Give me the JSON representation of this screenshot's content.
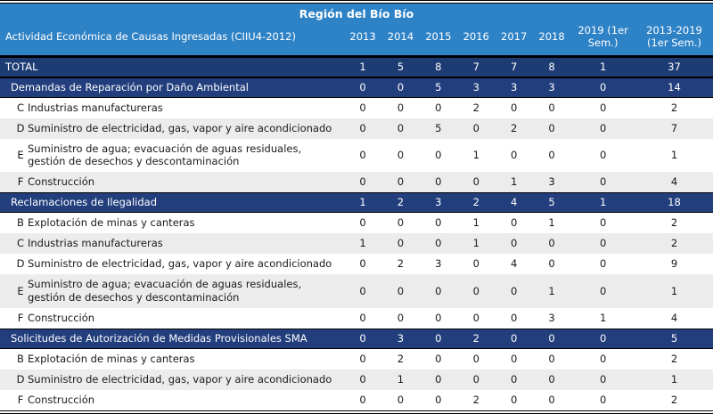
{
  "title": "Región del Bío Bío",
  "columns": {
    "label": "Actividad Económica de Causas Ingresadas (CIIU4-2012)",
    "years": [
      "2013",
      "2014",
      "2015",
      "2016",
      "2017",
      "2018"
    ],
    "semester": "2019 (1er Sem.)",
    "total": "2013-2019 (1er Sem.)"
  },
  "colors": {
    "header_blue": "#2E82C6",
    "total_navy": "#1E3C74",
    "section_navy": "#223E7D",
    "alt_row_gray": "#ECECEC",
    "header_text": "#ffffff",
    "body_text": "#1a1a1a"
  },
  "rows": [
    {
      "type": "total",
      "code": "",
      "label": "TOTAL",
      "values": [
        "1",
        "5",
        "8",
        "7",
        "7",
        "8",
        "1",
        "37"
      ]
    },
    {
      "type": "section",
      "code": "",
      "label": "Demandas de Reparación por Daño Ambiental",
      "values": [
        "0",
        "0",
        "5",
        "3",
        "3",
        "3",
        "0",
        "14"
      ]
    },
    {
      "type": "item",
      "code": "C",
      "label": "Industrias manufactureras",
      "values": [
        "0",
        "0",
        "0",
        "2",
        "0",
        "0",
        "0",
        "2"
      ]
    },
    {
      "type": "item",
      "code": "D",
      "label": "Suministro de electricidad, gas, vapor y aire acondicionado",
      "values": [
        "0",
        "0",
        "5",
        "0",
        "2",
        "0",
        "0",
        "7"
      ]
    },
    {
      "type": "item",
      "code": "E",
      "label": "Suministro de agua; evacuación de aguas residuales, gestión de desechos y descontaminación",
      "values": [
        "0",
        "0",
        "0",
        "1",
        "0",
        "0",
        "0",
        "1"
      ]
    },
    {
      "type": "item",
      "code": "F",
      "label": "Construcción",
      "values": [
        "0",
        "0",
        "0",
        "0",
        "1",
        "3",
        "0",
        "4"
      ]
    },
    {
      "type": "section",
      "code": "",
      "label": "Reclamaciones de Ilegalidad",
      "values": [
        "1",
        "2",
        "3",
        "2",
        "4",
        "5",
        "1",
        "18"
      ]
    },
    {
      "type": "item",
      "code": "B",
      "label": "Explotación de minas y canteras",
      "values": [
        "0",
        "0",
        "0",
        "1",
        "0",
        "1",
        "0",
        "2"
      ]
    },
    {
      "type": "item",
      "code": "C",
      "label": "Industrias manufactureras",
      "values": [
        "1",
        "0",
        "0",
        "1",
        "0",
        "0",
        "0",
        "2"
      ]
    },
    {
      "type": "item",
      "code": "D",
      "label": "Suministro de electricidad, gas, vapor y aire acondicionado",
      "values": [
        "0",
        "2",
        "3",
        "0",
        "4",
        "0",
        "0",
        "9"
      ]
    },
    {
      "type": "item",
      "code": "E",
      "label": "Suministro de agua; evacuación de aguas residuales, gestión de desechos y descontaminación",
      "values": [
        "0",
        "0",
        "0",
        "0",
        "0",
        "1",
        "0",
        "1"
      ]
    },
    {
      "type": "item",
      "code": "F",
      "label": "Construcción",
      "values": [
        "0",
        "0",
        "0",
        "0",
        "0",
        "3",
        "1",
        "4"
      ]
    },
    {
      "type": "section",
      "code": "",
      "label": "Solicitudes de Autorización de Medidas Provisionales SMA",
      "values": [
        "0",
        "3",
        "0",
        "2",
        "0",
        "0",
        "0",
        "5"
      ]
    },
    {
      "type": "item",
      "code": "B",
      "label": "Explotación de minas y canteras",
      "values": [
        "0",
        "2",
        "0",
        "0",
        "0",
        "0",
        "0",
        "2"
      ]
    },
    {
      "type": "item",
      "code": "D",
      "label": "Suministro de electricidad, gas, vapor y aire acondicionado",
      "values": [
        "0",
        "1",
        "0",
        "0",
        "0",
        "0",
        "0",
        "1"
      ]
    },
    {
      "type": "item",
      "code": "F",
      "label": "Construcción",
      "values": [
        "0",
        "0",
        "0",
        "2",
        "0",
        "0",
        "0",
        "2"
      ]
    }
  ]
}
